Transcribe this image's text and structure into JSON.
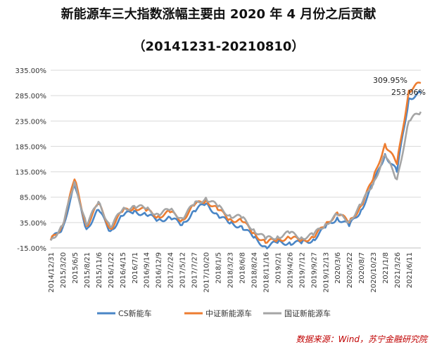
{
  "title": "新能源车三大指数涨幅主要由 2020 年 4 月份之后贡献",
  "subtitle": "（20141231-20210810）",
  "source": "数据来源：Wind，苏宁金融研究院",
  "chart_data": {
    "type": "line",
    "title": "新能源车三大指数涨幅主要由 2020 年 4 月份之后贡献",
    "subtitle": "（20141231-20210810）",
    "x": [
      "2014/12/31",
      "2015/3/20",
      "2015/6/5",
      "2015/8/21",
      "2015/11/6",
      "2016/1/22",
      "2016/4/15",
      "2016/7/1",
      "2016/9/14",
      "2016/12/9",
      "2017/2/24",
      "2017/5/12",
      "2017/7/27",
      "2017/10/20",
      "2018/1/5",
      "2018/3/23",
      "2018/6/8",
      "2018/8/24",
      "2018/11/16",
      "2019/2/1",
      "2019/4/26",
      "2019/7/12",
      "2019/9/27",
      "2019/12/13",
      "2020/3/6",
      "2020/5/22",
      "2020/8/7",
      "2020/10/23",
      "2021/1/8",
      "2021/3/26",
      "2021/6/11",
      "2021/8/10"
    ],
    "x_tick_labels": [
      "2014/12/31",
      "2015/3/20",
      "2015/6/5",
      "2015/8/21",
      "2015/11/6",
      "2016/1/22",
      "2016/4/15",
      "2016/7/1",
      "2016/9/14",
      "2016/12/9",
      "2017/2/24",
      "2017/5/12",
      "2017/7/27",
      "2017/10/20",
      "2018/1/5",
      "2018/3/23",
      "2018/6/8",
      "2018/8/24",
      "2018/11/16",
      "2019/2/1",
      "2019/4/26",
      "2019/7/12",
      "2019/9/27",
      "2019/12/13",
      "2020/3/6",
      "2020/5/22",
      "2020/8/7",
      "2020/10/23",
      "2021/1/8",
      "2021/3/26",
      "2021/6/11"
    ],
    "y_ticks": [
      -15,
      35,
      85,
      135,
      185,
      235,
      285,
      335
    ],
    "y_tick_labels": [
      "-15.00%",
      "35.00%",
      "85.00%",
      "135.00%",
      "185.00%",
      "235.00%",
      "285.00%",
      "335.00%"
    ],
    "ylim": [
      -15,
      335
    ],
    "xlabel": "",
    "ylabel": "",
    "grid": "horizontal",
    "legend": "bottom",
    "series": [
      {
        "name": "CS新能车",
        "color": "#4a86c6",
        "values": [
          0,
          25,
          108,
          22,
          60,
          18,
          48,
          58,
          50,
          40,
          45,
          30,
          58,
          72,
          50,
          33,
          28,
          5,
          -12,
          -5,
          -4,
          -6,
          2,
          25,
          45,
          28,
          60,
          110,
          170,
          135,
          280,
          290
        ]
      },
      {
        "name": "中证新能源车",
        "color": "#ed7d31",
        "values": [
          0,
          30,
          120,
          28,
          72,
          23,
          56,
          66,
          58,
          48,
          55,
          40,
          68,
          80,
          60,
          42,
          38,
          15,
          -5,
          2,
          5,
          0,
          6,
          30,
          55,
          35,
          68,
          120,
          190,
          150,
          295,
          309.95
        ]
      },
      {
        "name": "国证新能源车",
        "color": "#a5a5a5",
        "values": [
          0,
          28,
          115,
          30,
          76,
          26,
          60,
          68,
          62,
          52,
          60,
          44,
          70,
          84,
          66,
          50,
          44,
          22,
          2,
          8,
          14,
          6,
          10,
          32,
          50,
          38,
          70,
          112,
          168,
          120,
          235,
          253.06
        ]
      }
    ],
    "annotations": [
      {
        "text": "309.95%",
        "series": "中证新能源车",
        "x": "2021/8/10",
        "y": 309.95
      },
      {
        "text": "253.06%",
        "series": "国证新能源车",
        "x": "2021/8/10",
        "y": 253.06
      }
    ]
  }
}
